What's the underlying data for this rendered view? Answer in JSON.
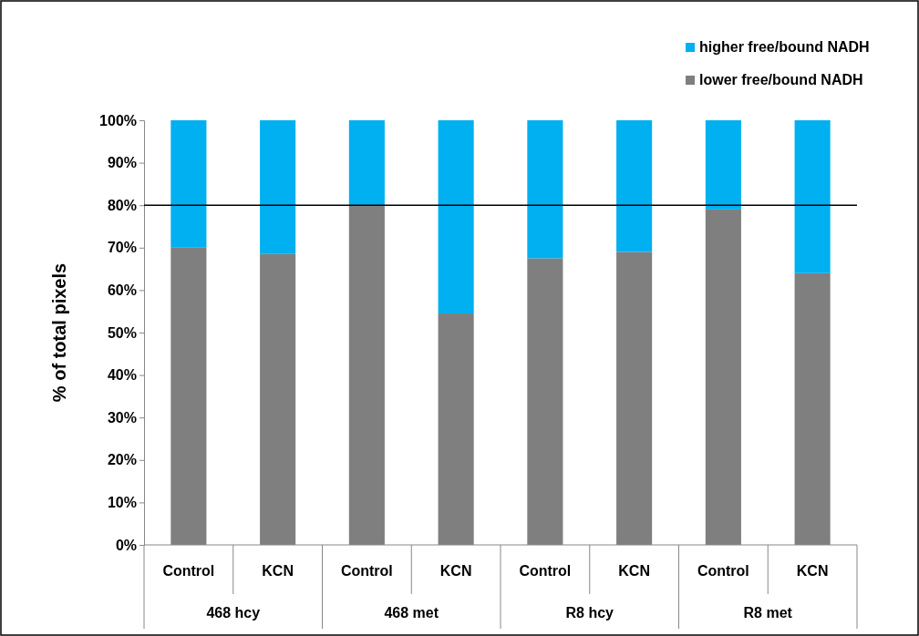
{
  "chart_data": {
    "type": "bar",
    "stacked": true,
    "ylabel": "% of total pixels",
    "categories": [
      "Control",
      "KCN",
      "Control",
      "KCN",
      "Control",
      "KCN",
      "Control",
      "KCN"
    ],
    "series": [
      {
        "name": "lower free/bound NADH",
        "color": "#7f7f7f",
        "values": [
          70,
          68.5,
          80,
          54.5,
          67.5,
          69,
          79,
          64
        ]
      },
      {
        "name": "higher free/bound NADH",
        "color": "#00b0f0",
        "values": [
          30,
          31.5,
          20,
          45.5,
          32.5,
          31,
          21,
          36
        ]
      }
    ],
    "ylim": [
      0,
      100
    ],
    "yticks": [
      {
        "value": 0,
        "label": "0%"
      },
      {
        "value": 10,
        "label": "10%"
      },
      {
        "value": 20,
        "label": "20%"
      },
      {
        "value": 30,
        "label": "30%"
      },
      {
        "value": 40,
        "label": "40%"
      },
      {
        "value": 50,
        "label": "50%"
      },
      {
        "value": 60,
        "label": "60%"
      },
      {
        "value": 70,
        "label": "70%"
      },
      {
        "value": 80,
        "label": "80%"
      },
      {
        "value": 90,
        "label": "90%"
      },
      {
        "value": 100,
        "label": "100%"
      }
    ],
    "ref_lines": [
      {
        "axis": "y",
        "value": 80,
        "color": "#000000"
      }
    ],
    "annotations": [
      "468 hcy",
      "468 met",
      "R8 hcy",
      "R8 met"
    ],
    "legend": "top right",
    "grid": false
  }
}
